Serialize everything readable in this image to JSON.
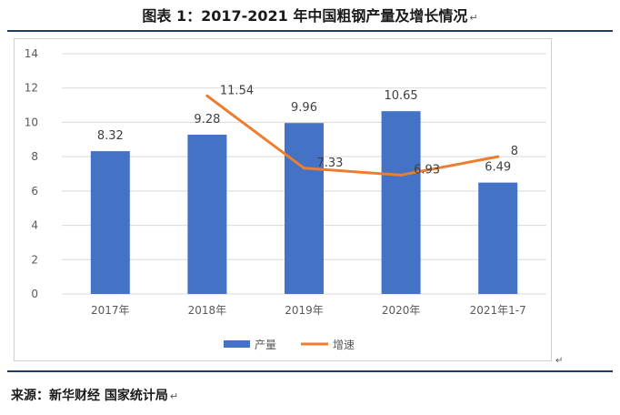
{
  "title": "图表 1：2017-2021 年中国粗钢产量及增长情况",
  "paragraph_mark": "↵",
  "source": "来源：新华财经 国家统计局",
  "colors": {
    "bar": "#4472C4",
    "line": "#ED7D31",
    "grid": "#d9d9d9",
    "axis_text": "#595959",
    "label_text": "#404040"
  },
  "chart_data": {
    "type": "bar",
    "categories": [
      "2017年",
      "2018年",
      "2019年",
      "2020年",
      "2021年1-7"
    ],
    "series": [
      {
        "name": "产量",
        "type": "bar",
        "values": [
          8.32,
          9.28,
          9.96,
          10.65,
          6.49
        ],
        "labels": [
          "8.32",
          "9.28",
          "9.96",
          "10.65",
          "6.49"
        ]
      },
      {
        "name": "增速",
        "type": "line",
        "values": [
          null,
          11.54,
          7.33,
          6.93,
          8
        ],
        "labels": [
          "",
          "11.54",
          "7.33",
          "6.93",
          "8"
        ]
      }
    ],
    "ylim": [
      0,
      14
    ],
    "yticks": [
      0,
      2,
      4,
      6,
      8,
      10,
      12,
      14
    ],
    "ytick_labels": [
      "0",
      "2",
      "4",
      "6",
      "8",
      "10",
      "12",
      "14"
    ],
    "grid": true,
    "legend": "bottom"
  }
}
